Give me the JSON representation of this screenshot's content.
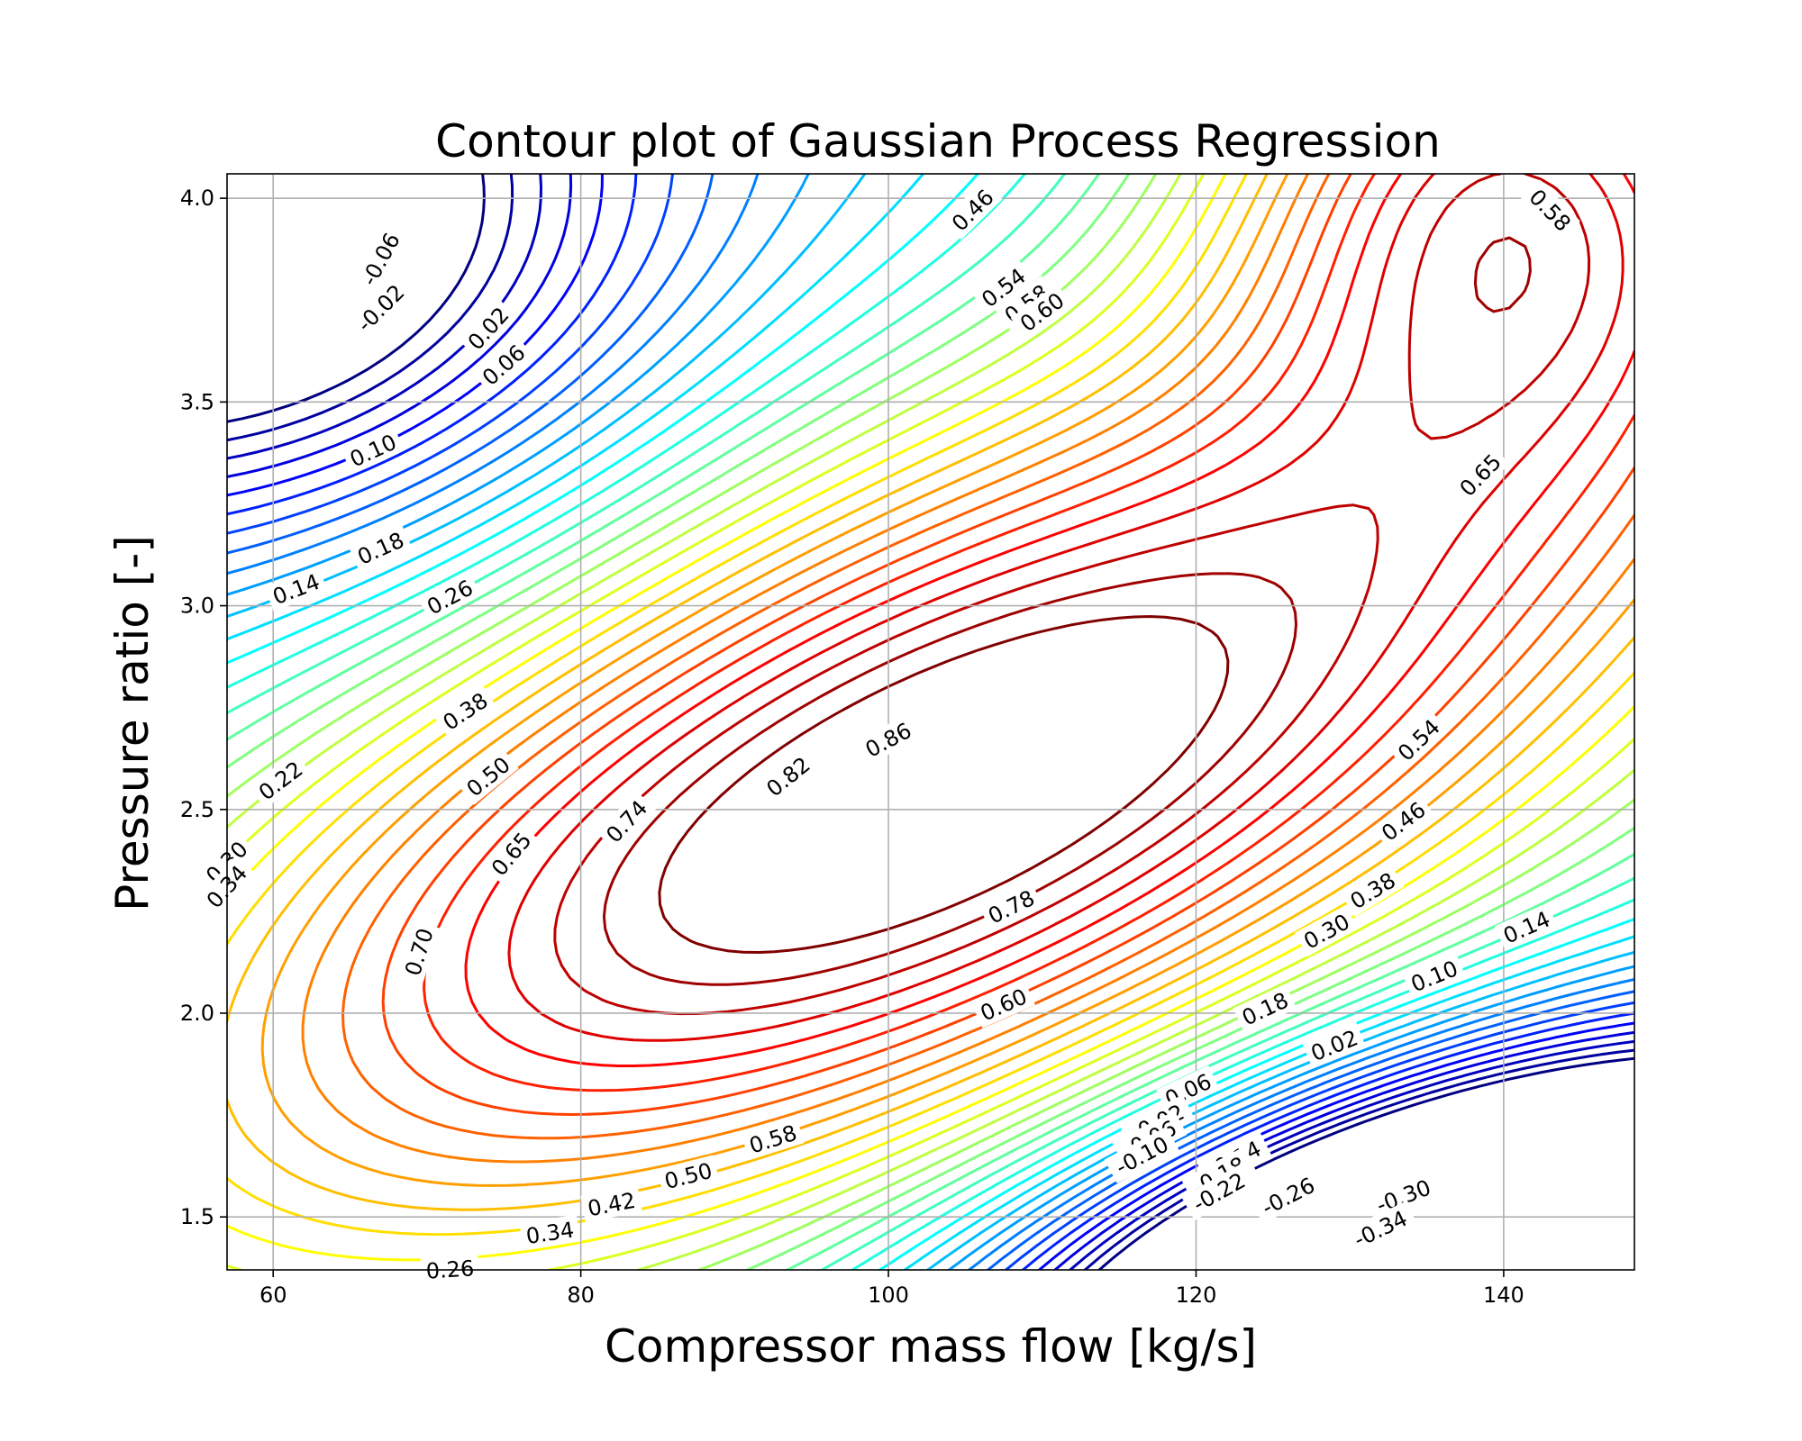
{
  "chart_data": {
    "type": "contour",
    "title": "Contour plot of Gaussian Process Regression",
    "xlabel": "Compressor mass flow [kg/s]",
    "ylabel": "Pressure ratio [-]",
    "xlim": [
      57,
      148.5
    ],
    "ylim": [
      1.37,
      4.06
    ],
    "x_ticks": [
      60,
      80,
      100,
      120,
      140
    ],
    "y_ticks": [
      1.5,
      2.0,
      2.5,
      3.0,
      3.5,
      4.0
    ],
    "x_tick_labels": [
      "60",
      "80",
      "100",
      "120",
      "140"
    ],
    "y_tick_labels": [
      "1.5",
      "2.0",
      "2.5",
      "3.0",
      "3.5",
      "4.0"
    ],
    "grid": true,
    "colormap": "jet",
    "level_range": [
      -0.38,
      0.9
    ],
    "surface_model": {
      "kind": "sum of gaussian bumps",
      "bumps": [
        {
          "amplitude": 1.0,
          "center": [
            103,
            2.55
          ],
          "sigma_major": 48,
          "sigma_minor": 0.55,
          "angle_deg": 40
        },
        {
          "amplitude": -1.4,
          "center": [
            140,
            1.3
          ],
          "sigma_major": 22,
          "sigma_minor": 0.35,
          "angle_deg": 25
        },
        {
          "amplitude": -0.7,
          "center": [
            52,
            4.0
          ],
          "sigma_major": 20,
          "sigma_minor": 0.55,
          "angle_deg": 25
        },
        {
          "amplitude": 0.6,
          "center": [
            140,
            4.1
          ],
          "sigma_major": 14,
          "sigma_minor": 0.5,
          "angle_deg": 0
        }
      ]
    },
    "contour_labels": [
      {
        "text": "-0.06",
        "x": 67,
        "y": 3.85
      },
      {
        "text": "-0.02",
        "x": 67,
        "y": 3.73
      },
      {
        "text": "0.02",
        "x": 74,
        "y": 3.68
      },
      {
        "text": "0.06",
        "x": 75,
        "y": 3.59
      },
      {
        "text": "0.10",
        "x": 66.5,
        "y": 3.38
      },
      {
        "text": "0.18",
        "x": 67,
        "y": 3.14
      },
      {
        "text": "0.14",
        "x": 61.5,
        "y": 3.04
      },
      {
        "text": "0.26",
        "x": 71.5,
        "y": 3.02
      },
      {
        "text": "0.38",
        "x": 72.5,
        "y": 2.74
      },
      {
        "text": "0.50",
        "x": 74,
        "y": 2.58
      },
      {
        "text": "0.22",
        "x": 60.5,
        "y": 2.57
      },
      {
        "text": "0.65",
        "x": 75.5,
        "y": 2.39
      },
      {
        "text": "0.74",
        "x": 83,
        "y": 2.47
      },
      {
        "text": "0.82",
        "x": 93.5,
        "y": 2.58
      },
      {
        "text": "0.86",
        "x": 100,
        "y": 2.67
      },
      {
        "text": "0.30",
        "x": 57,
        "y": 2.37
      },
      {
        "text": "0.34",
        "x": 57,
        "y": 2.31
      },
      {
        "text": "0.70",
        "x": 69.5,
        "y": 2.15
      },
      {
        "text": "0.78",
        "x": 108,
        "y": 2.26
      },
      {
        "text": "0.60",
        "x": 107.5,
        "y": 2.02
      },
      {
        "text": "0.58",
        "x": 92.5,
        "y": 1.69
      },
      {
        "text": "0.50",
        "x": 87,
        "y": 1.6
      },
      {
        "text": "0.42",
        "x": 82,
        "y": 1.53
      },
      {
        "text": "0.34",
        "x": 78,
        "y": 1.46
      },
      {
        "text": "0.26",
        "x": 71.5,
        "y": 1.37
      },
      {
        "text": "0.46",
        "x": 105.5,
        "y": 3.97
      },
      {
        "text": "0.54",
        "x": 107.5,
        "y": 3.78
      },
      {
        "text": "0.58",
        "x": 109,
        "y": 3.74
      },
      {
        "text": "0.60",
        "x": 110,
        "y": 3.72
      },
      {
        "text": "0.58",
        "x": 143,
        "y": 3.97
      },
      {
        "text": "0.65",
        "x": 138.5,
        "y": 3.32
      },
      {
        "text": "0.54",
        "x": 134.5,
        "y": 2.67
      },
      {
        "text": "0.46",
        "x": 133.5,
        "y": 2.47
      },
      {
        "text": "0.38",
        "x": 131.5,
        "y": 2.3
      },
      {
        "text": "0.30",
        "x": 128.5,
        "y": 2.2
      },
      {
        "text": "0.18",
        "x": 124.5,
        "y": 2.01
      },
      {
        "text": "0.14",
        "x": 141.5,
        "y": 2.21
      },
      {
        "text": "0.10",
        "x": 135.5,
        "y": 2.09
      },
      {
        "text": "0.02",
        "x": 129,
        "y": 1.92
      },
      {
        "text": "0.06",
        "x": 119.5,
        "y": 1.81
      },
      {
        "text": "-0.02",
        "x": 117.5,
        "y": 1.73
      },
      {
        "text": "-0.06",
        "x": 117,
        "y": 1.69
      },
      {
        "text": "-0.10",
        "x": 116.5,
        "y": 1.65
      },
      {
        "text": "-0.14",
        "x": 122.5,
        "y": 1.64
      },
      {
        "text": "-0.18",
        "x": 121.5,
        "y": 1.6
      },
      {
        "text": "-0.22",
        "x": 121.5,
        "y": 1.56
      },
      {
        "text": "-0.26",
        "x": 126,
        "y": 1.55
      },
      {
        "text": "-0.30",
        "x": 133.5,
        "y": 1.55
      },
      {
        "text": "-0.34",
        "x": 132,
        "y": 1.47
      }
    ]
  }
}
